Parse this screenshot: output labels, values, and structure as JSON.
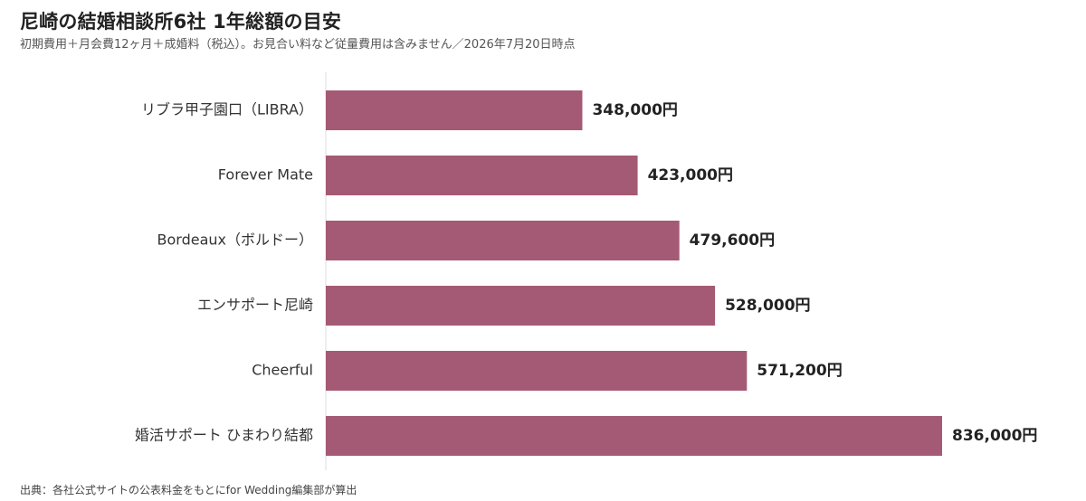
{
  "title": "尼崎の結婚相談所6社 1年総額の目安",
  "subtitle": "初期費用＋月会費12ヶ月＋成婚料（税込）。お見合い料など従量費用は含みません／2026年7月20日時点",
  "source": "出典：各社公式サイトの公表料金をもとにfor Wedding編集部が算出",
  "colors": {
    "bar": "#a45a74",
    "axis": "#dddddd",
    "label": "#333333",
    "value": "#222222"
  },
  "chart_data": {
    "type": "bar",
    "orientation": "horizontal",
    "categories": [
      "リブラ甲子園口（LIBRA）",
      "Forever Mate",
      "Bordeaux（ボルドー）",
      "エンサポート尼崎",
      "Cheerful",
      "婚活サポート ひまわり結都"
    ],
    "values": [
      348000,
      423000,
      479600,
      528000,
      571200,
      836000
    ],
    "value_labels": [
      "348,000円",
      "423,000円",
      "479,600円",
      "528,000円",
      "571,200円",
      "836,000円"
    ],
    "xlim": [
      0,
      836000
    ],
    "grid": false,
    "legend": "none"
  }
}
